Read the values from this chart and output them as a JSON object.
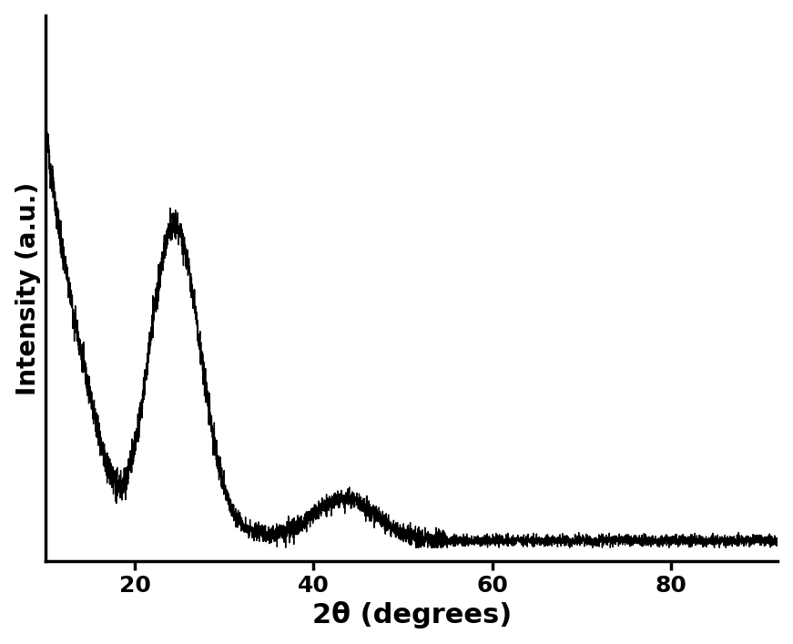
{
  "xlabel": "2θ (degrees)",
  "ylabel": "Intensity (a.u.)",
  "xlim": [
    10,
    92
  ],
  "xticks": [
    20,
    40,
    60,
    80
  ],
  "line_color": "#000000",
  "line_width": 1.0,
  "background_color": "#ffffff",
  "spine_linewidth": 2.5,
  "tick_labelsize": 18,
  "xlabel_fontsize": 22,
  "ylabel_fontsize": 20,
  "ylim": [
    0.0,
    1.6
  ]
}
